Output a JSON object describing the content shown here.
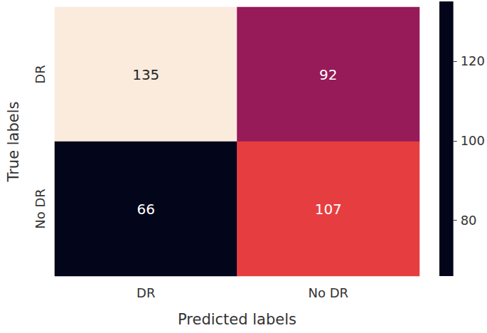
{
  "chart_data": {
    "type": "heatmap",
    "x_label": "Predicted labels",
    "y_label": "True labels",
    "x_categories": [
      "DR",
      "No DR"
    ],
    "y_categories": [
      "DR",
      "No DR"
    ],
    "cells": [
      [
        135,
        92
      ],
      [
        66,
        107
      ]
    ],
    "data_labels": true,
    "color": "rocket",
    "colorbar_range": [
      66,
      135
    ],
    "colorbar_ticks": [
      80,
      100,
      120
    ]
  }
}
